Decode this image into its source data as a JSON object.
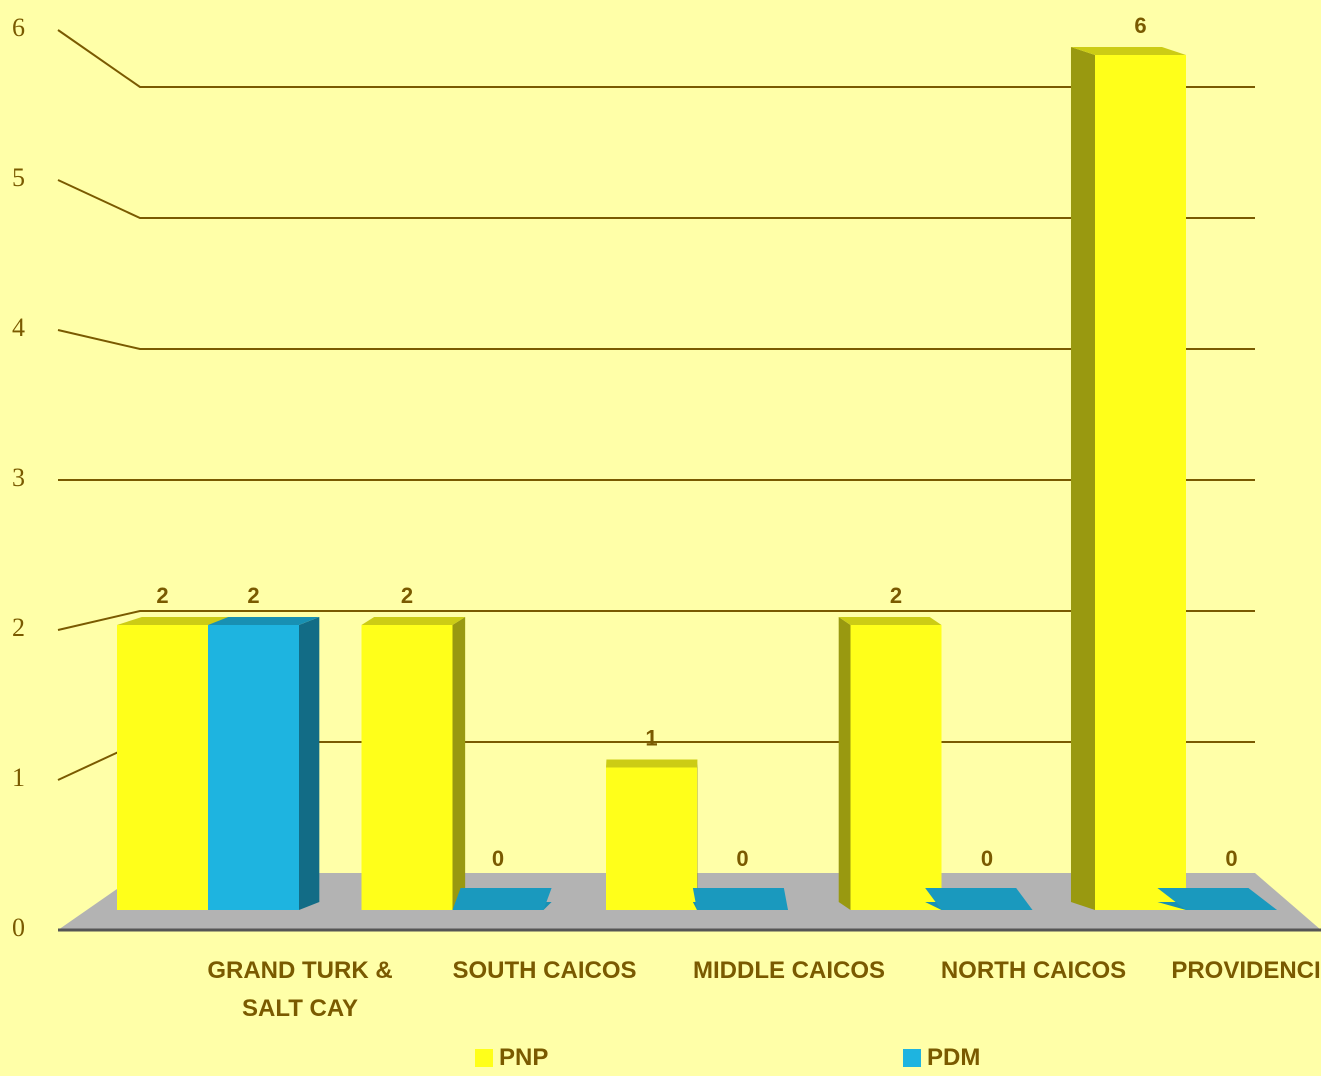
{
  "chart_data": {
    "type": "bar3d",
    "categories": [
      "GRAND TURK & SALT CAY",
      "SOUTH CAICOS",
      "MIDDLE CAICOS",
      "NORTH CAICOS",
      "PROVIDENCIALES"
    ],
    "series": [
      {
        "name": "PNP",
        "color": "#ffff1a",
        "values": [
          2,
          2,
          1,
          2,
          6
        ]
      },
      {
        "name": "PDM",
        "color": "#1eb4e0",
        "values": [
          2,
          0,
          0,
          0,
          0
        ]
      }
    ],
    "ylim": [
      0,
      6
    ],
    "yticks": [
      0,
      1,
      2,
      3,
      4,
      5,
      6
    ],
    "grid": true
  }
}
